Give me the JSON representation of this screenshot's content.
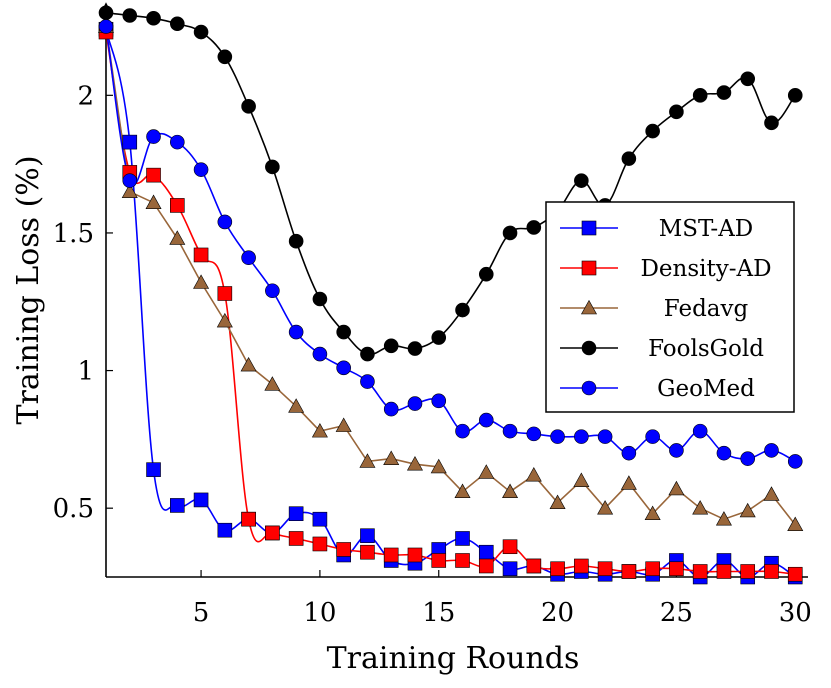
{
  "chart_data": {
    "type": "line",
    "xlabel": "Training Rounds",
    "ylabel": "Training Loss (%)",
    "xlim": [
      1,
      30.2
    ],
    "ylim": [
      0.25,
      2.31
    ],
    "xticks": [
      5,
      10,
      15,
      20,
      25,
      30
    ],
    "yticks": [
      0.5,
      1,
      1.5,
      2
    ],
    "ytick_labels": [
      "0.5",
      "1",
      "1.5",
      "2"
    ],
    "grid": false,
    "legend_position": "right",
    "x": [
      1,
      2,
      3,
      4,
      5,
      6,
      7,
      8,
      9,
      10,
      11,
      12,
      13,
      14,
      15,
      16,
      17,
      18,
      19,
      20,
      21,
      22,
      23,
      24,
      25,
      26,
      27,
      28,
      29,
      30
    ],
    "series": [
      {
        "name": "MST-AD",
        "color": "#0000ff",
        "marker": "square",
        "smooth": true,
        "values": [
          2.24,
          1.83,
          0.64,
          0.51,
          0.53,
          0.42,
          0.46,
          0.41,
          0.48,
          0.46,
          0.33,
          0.4,
          0.31,
          0.3,
          0.35,
          0.39,
          0.34,
          0.28,
          0.29,
          0.26,
          0.27,
          0.26,
          0.27,
          0.26,
          0.31,
          0.25,
          0.31,
          0.25,
          0.3,
          0.25
        ]
      },
      {
        "name": "Density-AD",
        "color": "#ff0000",
        "marker": "square",
        "smooth": true,
        "values": [
          2.23,
          1.72,
          1.71,
          1.6,
          1.42,
          1.28,
          0.46,
          0.41,
          0.39,
          0.37,
          0.35,
          0.34,
          0.33,
          0.33,
          0.31,
          0.31,
          0.29,
          0.36,
          0.29,
          0.28,
          0.29,
          0.28,
          0.27,
          0.28,
          0.28,
          0.27,
          0.27,
          0.27,
          0.27,
          0.26
        ]
      },
      {
        "name": "Fedavg",
        "color": "#99663a",
        "marker": "triangle",
        "smooth": false,
        "values": [
          2.25,
          1.65,
          1.61,
          1.48,
          1.32,
          1.18,
          1.02,
          0.95,
          0.87,
          0.78,
          0.8,
          0.67,
          0.68,
          0.66,
          0.65,
          0.56,
          0.63,
          0.56,
          0.62,
          0.52,
          0.6,
          0.5,
          0.59,
          0.48,
          0.57,
          0.5,
          0.46,
          0.49,
          0.55,
          0.44
        ]
      },
      {
        "name": "FoolsGold",
        "color": "#000000",
        "marker": "circle",
        "smooth": true,
        "values": [
          2.3,
          2.29,
          2.28,
          2.26,
          2.23,
          2.14,
          1.96,
          1.74,
          1.47,
          1.26,
          1.14,
          1.06,
          1.09,
          1.08,
          1.12,
          1.22,
          1.35,
          1.5,
          1.52,
          1.58,
          1.69,
          1.6,
          1.77,
          1.87,
          1.94,
          2.0,
          2.01,
          2.06,
          1.9,
          2.0
        ]
      },
      {
        "name": "GeoMed",
        "color": "#0000ff",
        "marker": "circle",
        "smooth": true,
        "values": [
          2.25,
          1.69,
          1.85,
          1.83,
          1.73,
          1.54,
          1.41,
          1.29,
          1.14,
          1.06,
          1.01,
          0.96,
          0.86,
          0.88,
          0.89,
          0.78,
          0.82,
          0.78,
          0.77,
          0.76,
          0.76,
          0.76,
          0.7,
          0.76,
          0.71,
          0.78,
          0.7,
          0.68,
          0.71,
          0.67
        ]
      }
    ]
  }
}
